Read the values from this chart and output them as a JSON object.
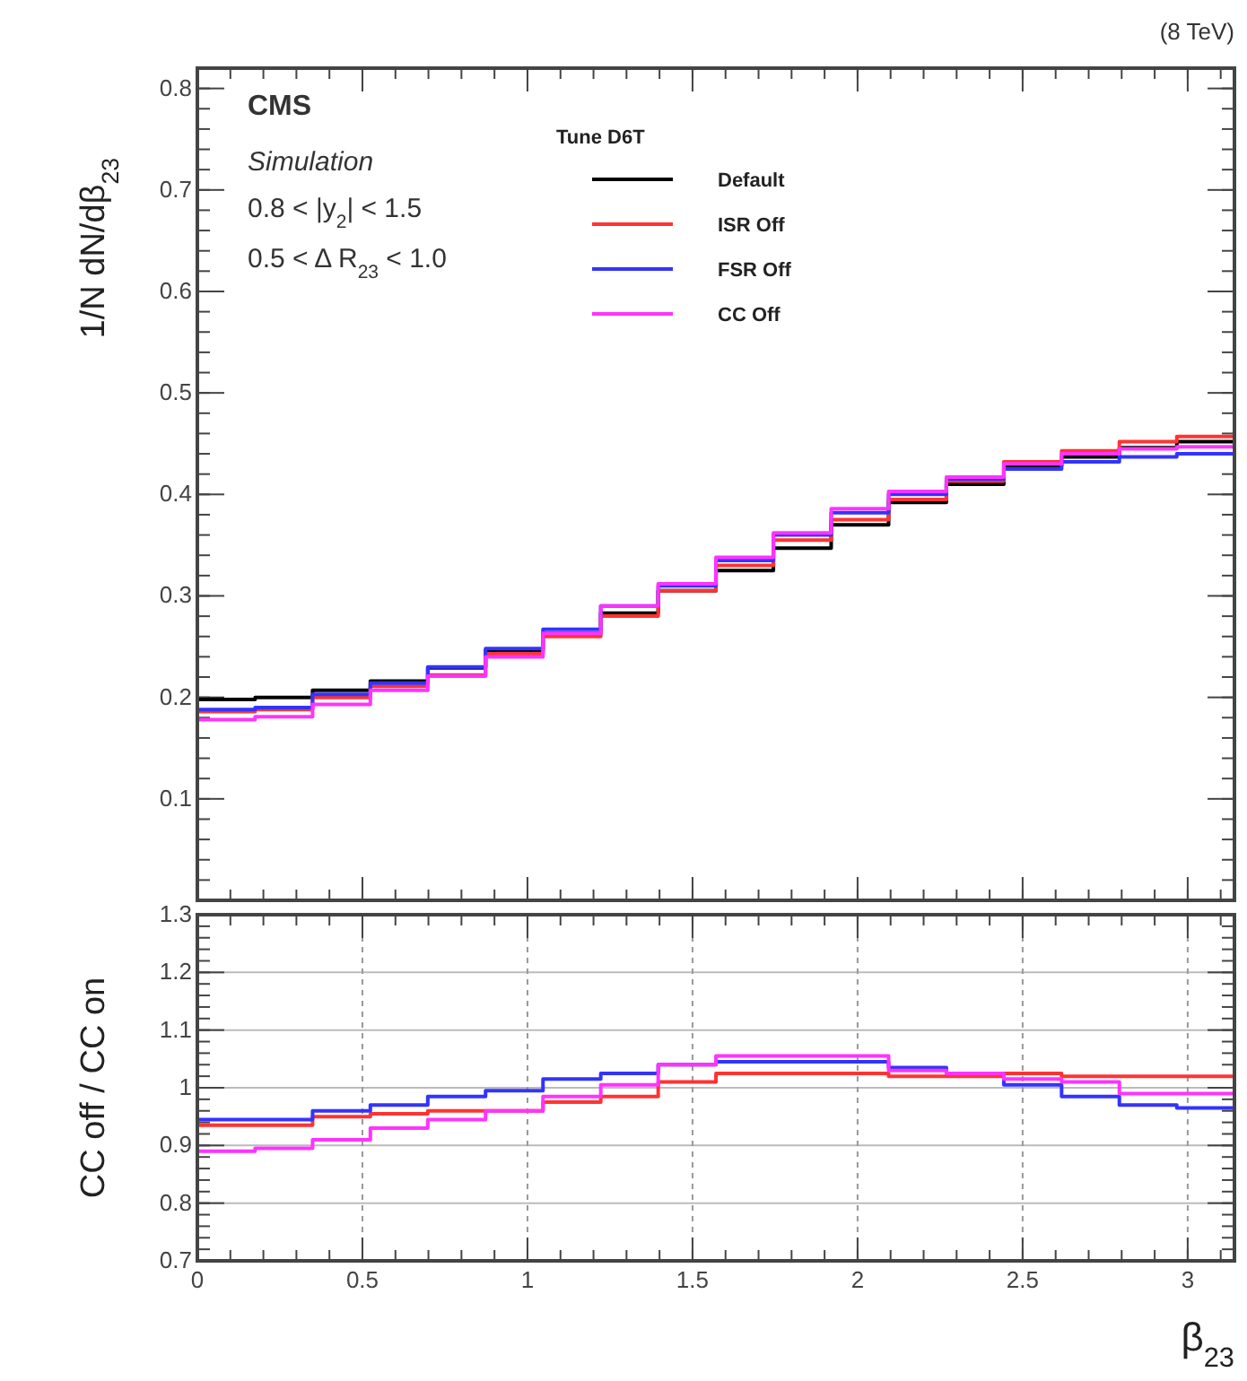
{
  "chart_data": [
    {
      "type": "histogram",
      "ylabel": "1/N dN/dβ$_{23}$",
      "legend_title": "Tune D6T",
      "legend": "top",
      "annotations": [
        "(8 TeV)",
        "CMS",
        "Simulation",
        "0.8 < |y$_{2}$| < 1.5",
        "0.5 < Δ R$_{23}$ < 1.0"
      ],
      "bins": [
        0,
        0.175,
        0.349,
        0.524,
        0.698,
        0.873,
        1.047,
        1.222,
        1.396,
        1.571,
        1.745,
        1.92,
        2.094,
        2.269,
        2.443,
        2.618,
        2.793,
        2.967,
        3.1416
      ],
      "series": [
        {
          "name": "Default",
          "color": "#000000",
          "values": [
            0.198,
            0.2,
            0.207,
            0.216,
            0.229,
            0.246,
            0.263,
            0.283,
            0.305,
            0.325,
            0.347,
            0.37,
            0.392,
            0.41,
            0.428,
            0.437,
            0.446,
            0.452
          ]
        },
        {
          "name": "ISR Off",
          "color": "#ff3333",
          "values": [
            0.186,
            0.188,
            0.2,
            0.211,
            0.222,
            0.243,
            0.26,
            0.28,
            0.305,
            0.33,
            0.355,
            0.375,
            0.395,
            0.413,
            0.432,
            0.443,
            0.452,
            0.457
          ]
        },
        {
          "name": "FSR Off",
          "color": "#3333ff",
          "values": [
            0.188,
            0.19,
            0.203,
            0.214,
            0.23,
            0.248,
            0.267,
            0.29,
            0.31,
            0.335,
            0.36,
            0.382,
            0.4,
            0.415,
            0.425,
            0.432,
            0.437,
            0.44
          ]
        },
        {
          "name": "CC Off",
          "color": "#ff33ff",
          "values": [
            0.178,
            0.181,
            0.193,
            0.207,
            0.221,
            0.24,
            0.263,
            0.29,
            0.312,
            0.338,
            0.362,
            0.386,
            0.403,
            0.417,
            0.43,
            0.44,
            0.445,
            0.447
          ]
        }
      ],
      "xlim": [
        0,
        3.1416
      ],
      "xticks": [
        0,
        0.5,
        1,
        1.5,
        2,
        2.5,
        3
      ],
      "ylim": [
        0,
        0.82
      ],
      "yticks": [
        0.1,
        0.2,
        0.3,
        0.4,
        0.5,
        0.6,
        0.7,
        0.8
      ],
      "tick_labels": "y",
      "grid": false
    },
    {
      "type": "histogram",
      "ylabel": "CC off / CC on",
      "xlabel": "β$_{23}$",
      "bins": [
        0,
        0.175,
        0.349,
        0.524,
        0.698,
        0.873,
        1.047,
        1.222,
        1.396,
        1.571,
        1.745,
        1.92,
        2.094,
        2.269,
        2.443,
        2.618,
        2.793,
        2.967,
        3.1416
      ],
      "series": [
        {
          "color": "#ff3333",
          "values": [
            0.935,
            0.935,
            0.95,
            0.955,
            0.96,
            0.96,
            0.975,
            0.985,
            1.01,
            1.025,
            1.025,
            1.025,
            1.02,
            1.02,
            1.025,
            1.02,
            1.02,
            1.02
          ]
        },
        {
          "color": "#3333ff",
          "values": [
            0.945,
            0.945,
            0.96,
            0.97,
            0.985,
            0.995,
            1.015,
            1.025,
            1.04,
            1.045,
            1.045,
            1.045,
            1.035,
            1.025,
            1.005,
            0.985,
            0.97,
            0.965
          ]
        },
        {
          "color": "#ff33ff",
          "values": [
            0.89,
            0.895,
            0.91,
            0.93,
            0.945,
            0.96,
            0.985,
            1.005,
            1.04,
            1.055,
            1.055,
            1.055,
            1.03,
            1.025,
            1.015,
            1.01,
            0.99,
            0.99
          ]
        }
      ],
      "xlim": [
        0,
        3.1416
      ],
      "xticks": [
        0,
        0.5,
        1,
        1.5,
        2,
        2.5,
        3
      ],
      "ylim": [
        0.7,
        1.3
      ],
      "yticks": [
        0.7,
        0.8,
        0.9,
        1,
        1.1,
        1.2,
        1.3
      ],
      "grid": true
    }
  ]
}
